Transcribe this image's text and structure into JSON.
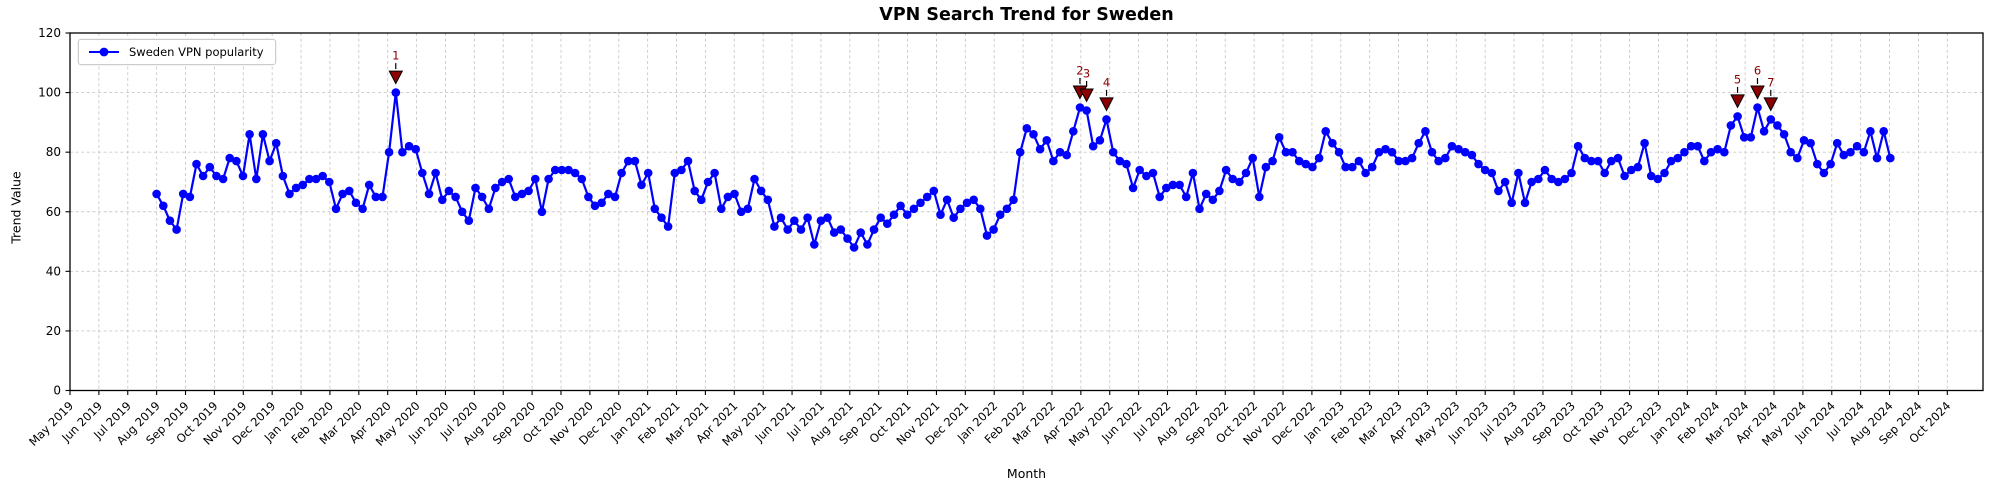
{
  "title": "VPN Search Trend for Sweden",
  "legend": {
    "series_label": "Sweden VPN popularity"
  },
  "colors": {
    "line": "#0000ff",
    "marker": "#0000ff",
    "annotation_fill": "#8b0000",
    "annotation_text": "#8b0000",
    "annotation_edge": "#000000",
    "grid": "#c9c9c9",
    "axis": "#000000"
  },
  "chart_data": {
    "type": "line",
    "title": "VPN Search Trend for Sweden",
    "xlabel": "Month",
    "ylabel": "Trend Value",
    "ylim": [
      0,
      120
    ],
    "y_ticks": [
      0,
      20,
      40,
      60,
      80,
      100,
      120
    ],
    "grid": true,
    "legend_position": "upper left",
    "x_tick_labels": [
      "May 2019",
      "Jun 2019",
      "Jul 2019",
      "Aug 2019",
      "Sep 2019",
      "Oct 2019",
      "Nov 2019",
      "Dec 2019",
      "Jan 2020",
      "Feb 2020",
      "Mar 2020",
      "Apr 2020",
      "May 2020",
      "Jun 2020",
      "Jul 2020",
      "Aug 2020",
      "Sep 2020",
      "Oct 2020",
      "Nov 2020",
      "Dec 2020",
      "Jan 2021",
      "Feb 2021",
      "Mar 2021",
      "Apr 2021",
      "May 2021",
      "Jun 2021",
      "Jul 2021",
      "Aug 2021",
      "Sep 2021",
      "Oct 2021",
      "Nov 2021",
      "Dec 2021",
      "Jan 2022",
      "Feb 2022",
      "Mar 2022",
      "Apr 2022",
      "May 2022",
      "Jun 2022",
      "Jul 2022",
      "Aug 2022",
      "Sep 2022",
      "Oct 2022",
      "Nov 2022",
      "Dec 2022",
      "Jan 2023",
      "Feb 2023",
      "Mar 2023",
      "Apr 2023",
      "May 2023",
      "Jun 2023",
      "Jul 2023",
      "Aug 2023",
      "Sep 2023",
      "Oct 2023",
      "Nov 2023",
      "Dec 2023",
      "Jan 2024",
      "Feb 2024",
      "Mar 2024",
      "Apr 2024",
      "May 2024",
      "Jun 2024",
      "Jul 2024",
      "Aug 2024",
      "Sep 2024",
      "Oct 2024"
    ],
    "x_start_month_index": 3.0,
    "weeks_per_month": 4.348,
    "series": [
      {
        "name": "Sweden VPN popularity",
        "interval": "weekly",
        "values": [
          66,
          62,
          57,
          54,
          66,
          65,
          76,
          72,
          75,
          72,
          71,
          78,
          77,
          72,
          86,
          71,
          86,
          77,
          83,
          72,
          66,
          68,
          69,
          71,
          71,
          72,
          70,
          61,
          66,
          67,
          63,
          61,
          69,
          65,
          65,
          80,
          100,
          80,
          82,
          81,
          73,
          66,
          73,
          64,
          67,
          65,
          60,
          57,
          68,
          65,
          61,
          68,
          70,
          71,
          65,
          66,
          67,
          71,
          60,
          71,
          74,
          74,
          74,
          73,
          71,
          65,
          62,
          63,
          66,
          65,
          73,
          77,
          77,
          69,
          73,
          61,
          58,
          55,
          73,
          74,
          77,
          67,
          64,
          70,
          73,
          61,
          65,
          66,
          60,
          61,
          71,
          67,
          64,
          55,
          58,
          54,
          57,
          54,
          58,
          49,
          57,
          58,
          53,
          54,
          51,
          48,
          53,
          49,
          54,
          58,
          56,
          59,
          62,
          59,
          61,
          63,
          65,
          67,
          59,
          64,
          58,
          61,
          63,
          64,
          61,
          52,
          54,
          59,
          61,
          64,
          80,
          88,
          86,
          81,
          84,
          77,
          80,
          79,
          87,
          95,
          94,
          82,
          84,
          91,
          80,
          77,
          76,
          68,
          74,
          72,
          73,
          65,
          68,
          69,
          69,
          65,
          73,
          61,
          66,
          64,
          67,
          74,
          71,
          70,
          73,
          78,
          65,
          75,
          77,
          85,
          80,
          80,
          77,
          76,
          75,
          78,
          87,
          83,
          80,
          75,
          75,
          77,
          73,
          75,
          80,
          81,
          80,
          77,
          77,
          78,
          83,
          87,
          80,
          77,
          78,
          82,
          81,
          80,
          79,
          76,
          74,
          73,
          67,
          70,
          63,
          73,
          63,
          70,
          71,
          74,
          71,
          70,
          71,
          73,
          82,
          78,
          77,
          77,
          73,
          77,
          78,
          72,
          74,
          75,
          83,
          72,
          71,
          73,
          77,
          78,
          80,
          82,
          82,
          77,
          80,
          81,
          80,
          89,
          92,
          85,
          85,
          95,
          87,
          91,
          89,
          86,
          80,
          78,
          84,
          83,
          76,
          73,
          76,
          83,
          79,
          80,
          82,
          80,
          87,
          78,
          87,
          78
        ]
      }
    ],
    "annotations": [
      {
        "label": "1",
        "week": 36,
        "value": 100
      },
      {
        "label": "2",
        "week": 139,
        "value": 95
      },
      {
        "label": "3",
        "week": 140,
        "value": 94
      },
      {
        "label": "4",
        "week": 143,
        "value": 91
      },
      {
        "label": "5",
        "week": 238,
        "value": 92
      },
      {
        "label": "6",
        "week": 241,
        "value": 95
      },
      {
        "label": "7",
        "week": 243,
        "value": 91
      }
    ]
  }
}
